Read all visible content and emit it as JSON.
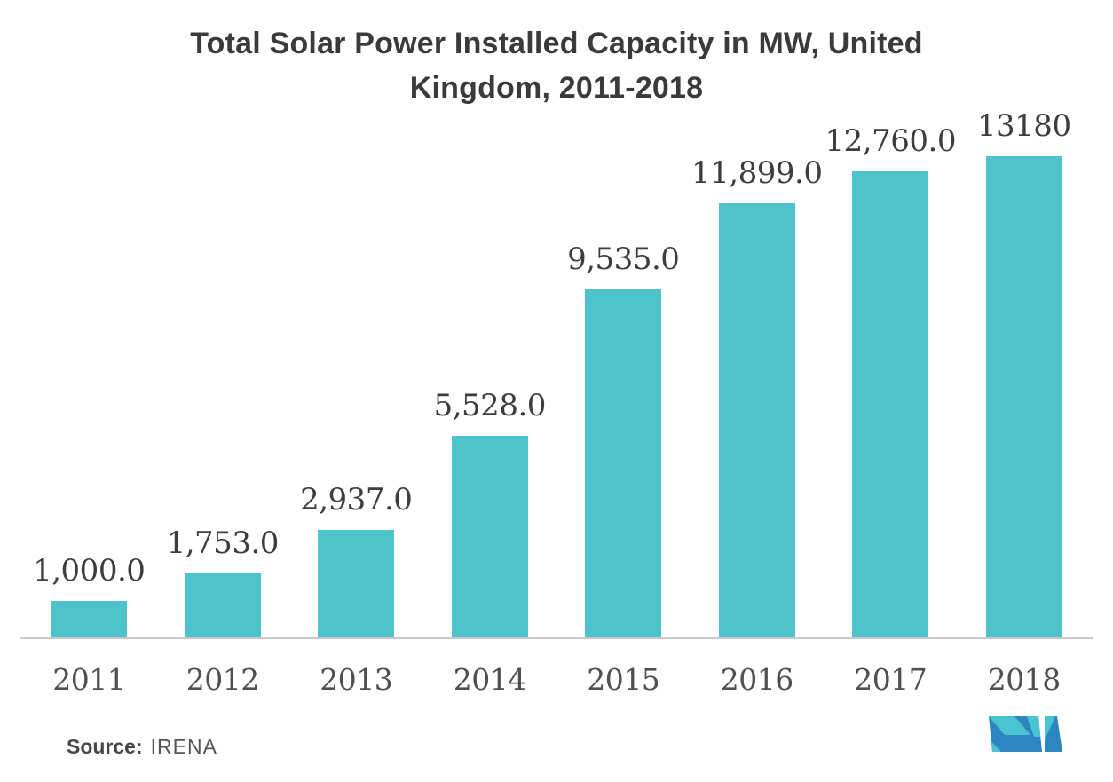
{
  "chart_data": {
    "type": "bar",
    "title": "Total Solar Power Installed Capacity in MW, United Kingdom, 2011-2018",
    "categories": [
      "2011",
      "2012",
      "2013",
      "2014",
      "2015",
      "2016",
      "2017",
      "2018"
    ],
    "values": [
      1000,
      1753,
      2937,
      5528,
      9535,
      11899,
      12760,
      13180
    ],
    "value_labels": [
      "1,000.0",
      "1,753.0",
      "2,937.0",
      "5,528.0",
      "9,535.0",
      "11,899.0",
      "12,760.0",
      "13180"
    ],
    "xlabel": "",
    "ylabel": "",
    "ylim": [
      0,
      13180
    ],
    "grid": false,
    "legend": "none",
    "y_axis_visible": false,
    "bar_color": "#4ec3cc",
    "axis_color": "#c9c9c9"
  },
  "source": {
    "label": "Source:",
    "name": "IRENA"
  },
  "logo": {
    "name": "mordor-intelligence-logo",
    "colors": {
      "blue": "#2e86c0",
      "teal": "#4ac4d0"
    }
  }
}
